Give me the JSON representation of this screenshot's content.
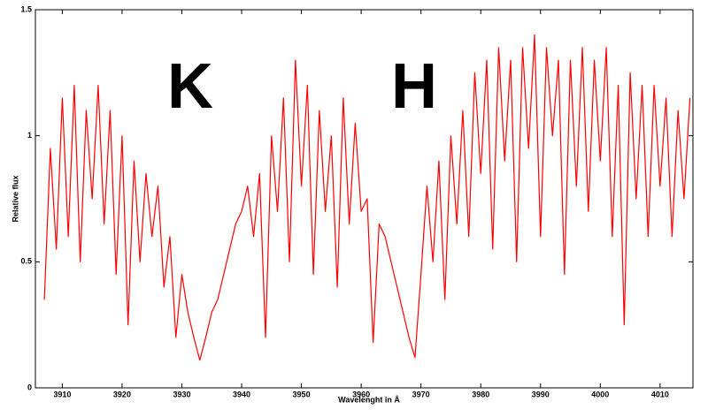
{
  "chart_data": {
    "type": "line",
    "x_label": "Wavelenght in Å",
    "y_label": "Relative flux",
    "annotations": [
      "K",
      "H"
    ],
    "xlim": [
      3905.5,
      4015.5
    ],
    "ylim": [
      0,
      1.5
    ],
    "xticks": [
      3910,
      3920,
      3930,
      3940,
      3950,
      3960,
      3970,
      3980,
      3990,
      4000,
      4010
    ],
    "yticks": [
      0,
      0.5,
      1,
      1.5
    ],
    "x": [
      3907,
      3908,
      3909,
      3910,
      3911,
      3912,
      3913,
      3914,
      3915,
      3916,
      3917,
      3918,
      3919,
      3920,
      3921,
      3922,
      3923,
      3924,
      3925,
      3926,
      3927,
      3928,
      3929,
      3930,
      3931,
      3932,
      3933,
      3934,
      3935,
      3936,
      3937,
      3938,
      3939,
      3940,
      3941,
      3942,
      3943,
      3944,
      3945,
      3946,
      3947,
      3948,
      3949,
      3950,
      3951,
      3952,
      3953,
      3954,
      3955,
      3956,
      3957,
      3958,
      3959,
      3960,
      3961,
      3962,
      3963,
      3964,
      3965,
      3966,
      3967,
      3968,
      3969,
      3970,
      3971,
      3972,
      3973,
      3974,
      3975,
      3976,
      3977,
      3978,
      3979,
      3980,
      3981,
      3982,
      3983,
      3984,
      3985,
      3986,
      3987,
      3988,
      3989,
      3990,
      3991,
      3992,
      3993,
      3994,
      3995,
      3996,
      3997,
      3998,
      3999,
      4000,
      4001,
      4002,
      4003,
      4004,
      4005,
      4006,
      4007,
      4008,
      4009,
      4010,
      4011,
      4012,
      4013,
      4014,
      4015
    ],
    "series": [
      {
        "name": "flux",
        "color": "#ff0000",
        "values": [
          0.35,
          0.95,
          0.55,
          1.15,
          0.6,
          1.2,
          0.5,
          1.1,
          0.75,
          1.2,
          0.65,
          1.1,
          0.45,
          1.0,
          0.25,
          0.9,
          0.5,
          0.85,
          0.6,
          0.8,
          0.4,
          0.6,
          0.2,
          0.45,
          0.3,
          0.2,
          0.11,
          0.2,
          0.3,
          0.35,
          0.45,
          0.55,
          0.65,
          0.7,
          0.8,
          0.6,
          0.85,
          0.2,
          1.0,
          0.7,
          1.15,
          0.5,
          1.3,
          0.8,
          1.2,
          0.45,
          1.1,
          0.7,
          1.0,
          0.4,
          1.15,
          0.65,
          1.05,
          0.7,
          0.75,
          0.18,
          0.65,
          0.6,
          0.5,
          0.4,
          0.3,
          0.2,
          0.12,
          0.45,
          0.8,
          0.5,
          0.9,
          0.35,
          1.0,
          0.65,
          1.1,
          0.6,
          1.25,
          0.85,
          1.3,
          0.55,
          1.35,
          0.9,
          1.3,
          0.5,
          1.35,
          0.95,
          1.4,
          0.6,
          1.35,
          1.0,
          1.3,
          0.45,
          1.3,
          0.8,
          1.35,
          0.7,
          1.3,
          0.9,
          1.35,
          0.6,
          1.2,
          0.25,
          1.25,
          0.75,
          1.2,
          0.6,
          1.2,
          0.8,
          1.15,
          0.6,
          1.1,
          0.75,
          1.15
        ]
      }
    ]
  }
}
